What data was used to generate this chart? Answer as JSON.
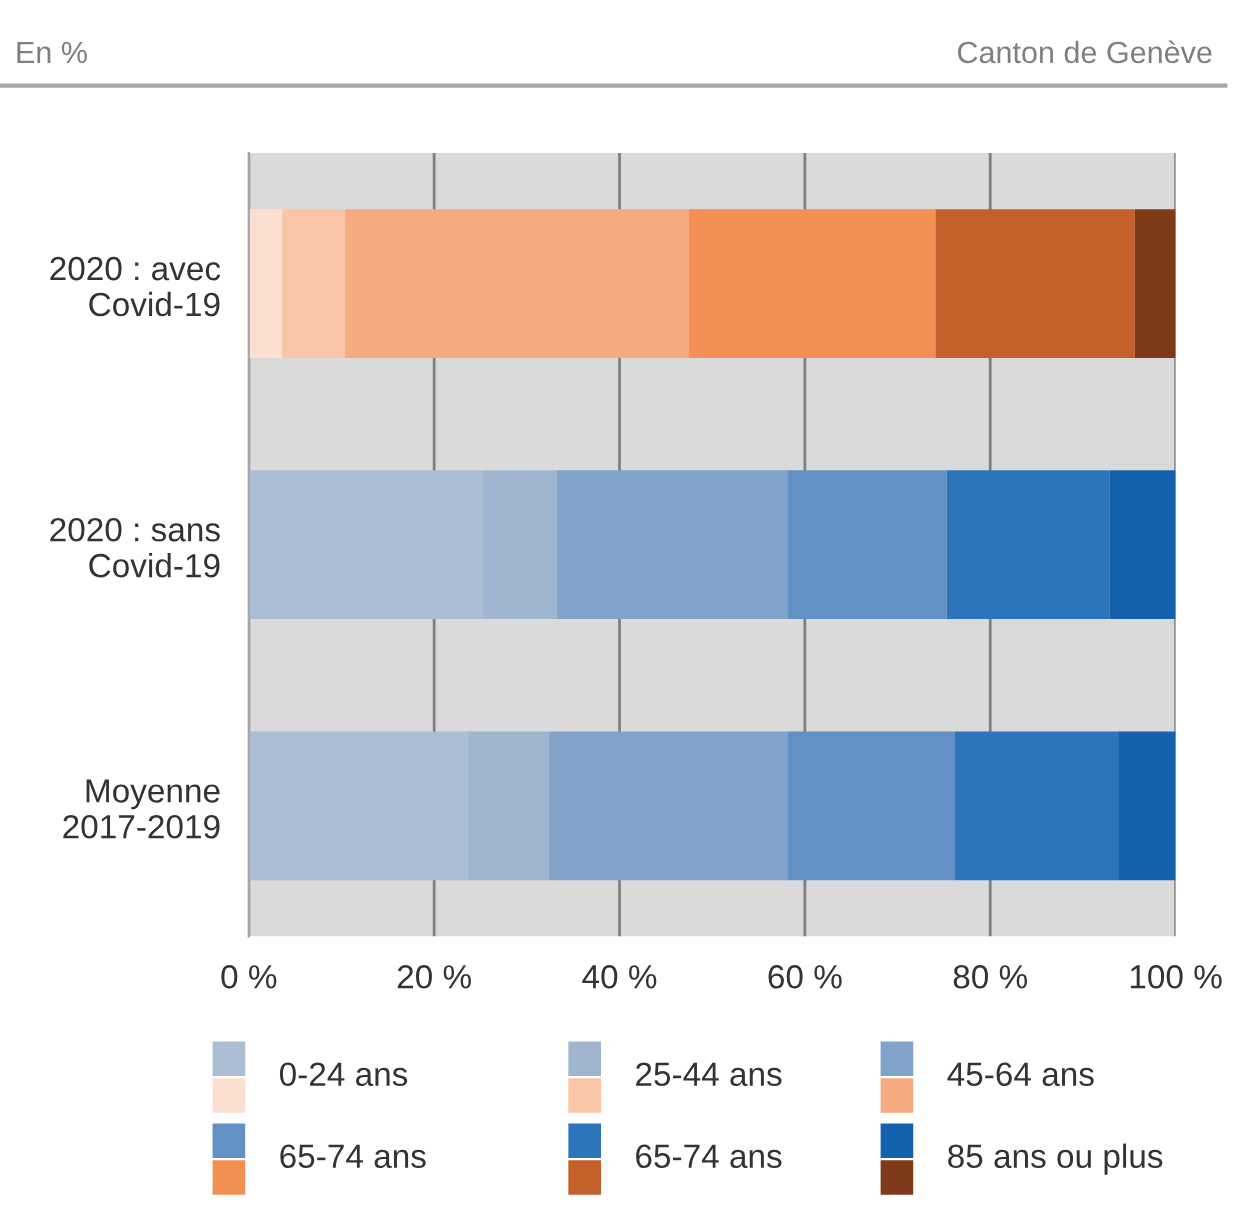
{
  "chart_data": {
    "type": "bar",
    "orientation": "horizontal",
    "stacked": true,
    "subtitle": "En %",
    "annotations": [
      "Canton de Genève"
    ],
    "categories": [
      "2020 : avec\nCovid-19",
      "2020 : sans\nCovid-19",
      "Moyenne\n2017-2019"
    ],
    "series": [
      {
        "name": "0-24 ans",
        "colors": [
          "#fbe0cf",
          "#abbdd3",
          "#abbdd3"
        ],
        "values": [
          3.6,
          25.2,
          23.6
        ]
      },
      {
        "name": "25-44 ans",
        "colors": [
          "#f8c6a6",
          "#9fb5d0",
          "#9fb5d0"
        ],
        "values": [
          6.8,
          8.0,
          8.8
        ]
      },
      {
        "name": "45-64 ans",
        "colors": [
          "#f5ab7f",
          "#81a3ca",
          "#81a3ca"
        ],
        "values": [
          37.1,
          24.9,
          25.7
        ]
      },
      {
        "name": "65-74 ans",
        "colors": [
          "#f29054",
          "#6391c5",
          "#6391c5"
        ],
        "values": [
          26.6,
          17.2,
          18.1
        ]
      },
      {
        "name": "65-74 ans",
        "colors": [
          "#c4602a",
          "#2d75ba",
          "#2d75ba"
        ],
        "values": [
          21.5,
          17.6,
          17.6
        ]
      },
      {
        "name": "85 ans ou plus",
        "colors": [
          "#7f3a1a",
          "#1461ae",
          "#1461ae"
        ],
        "values": [
          4.4,
          7.1,
          6.2
        ]
      }
    ],
    "xlim": [
      0,
      100
    ],
    "xticks": [
      {
        "value": 0,
        "label": "0 %"
      },
      {
        "value": 20,
        "label": "20 %"
      },
      {
        "value": 40,
        "label": "40 %"
      },
      {
        "value": 60,
        "label": "60 %"
      },
      {
        "value": 80,
        "label": "80 %"
      },
      {
        "value": 100,
        "label": "100 %"
      }
    ],
    "grid": "x",
    "legend": "bottom"
  }
}
